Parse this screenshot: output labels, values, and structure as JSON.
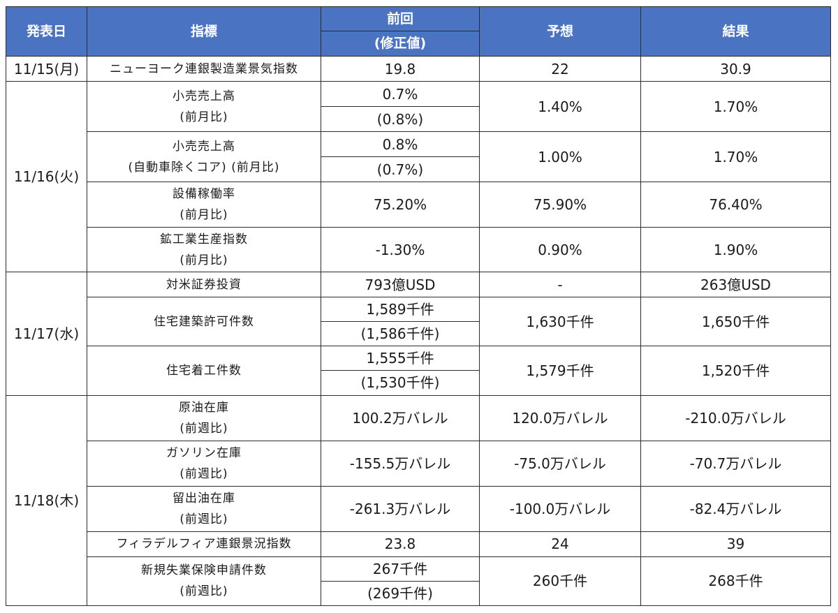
{
  "header": {
    "date": "発表日",
    "indicator": "指標",
    "prev": "前回",
    "prev_revised": "(修正値)",
    "forecast": "予想",
    "result": "結果"
  },
  "dates": [
    "11/15(月)",
    "11/16(火)",
    "11/17(水)",
    "11/18(木)"
  ],
  "rows": [
    {
      "name1": "ニューヨーク連銀製造業景気指数",
      "prev": "19.8",
      "forecast": "22",
      "result": "30.9"
    },
    {
      "name1": "小売売上高",
      "name2": "(前月比)",
      "prev": "0.7%",
      "revised": "(0.8%)",
      "forecast": "1.40%",
      "result": "1.70%"
    },
    {
      "name1": "小売売上高",
      "name2": "(自動車除くコア) (前月比)",
      "prev": "0.8%",
      "revised": "(0.7%)",
      "forecast": "1.00%",
      "result": "1.70%"
    },
    {
      "name1": "設備稼働率",
      "name2": "(前月比)",
      "prev": "75.20%",
      "forecast": "75.90%",
      "result": "76.40%"
    },
    {
      "name1": "鉱工業生産指数",
      "name2": "(前月比)",
      "prev": "-1.30%",
      "forecast": "0.90%",
      "result": "1.90%"
    },
    {
      "name1": "対米証券投資",
      "prev": "793億USD",
      "forecast": "-",
      "result": "263億USD"
    },
    {
      "name1": "住宅建築許可件数",
      "prev": "1,589千件",
      "revised": "(1,586千件)",
      "forecast": "1,630千件",
      "result": "1,650千件"
    },
    {
      "name1": "住宅着工件数",
      "prev": "1,555千件",
      "revised": "(1,530千件)",
      "forecast": "1,579千件",
      "result": "1,520千件"
    },
    {
      "name1": "原油在庫",
      "name2": "(前週比)",
      "prev": "100.2万バレル",
      "forecast": "120.0万バレル",
      "result": "-210.0万バレル"
    },
    {
      "name1": "ガソリン在庫",
      "name2": "(前週比)",
      "prev": "-155.5万バレル",
      "forecast": "-75.0万バレル",
      "result": "-70.7万バレル"
    },
    {
      "name1": "留出油在庫",
      "name2": "(前週比)",
      "prev": "-261.3万バレル",
      "forecast": "-100.0万バレル",
      "result": "-82.4万バレル"
    },
    {
      "name1": "フィラデルフィア連銀景況指数",
      "prev": "23.8",
      "forecast": "24",
      "result": "39"
    },
    {
      "name1": "新規失業保険申請件数",
      "name2": "(前週比)",
      "prev": "267千件",
      "revised": "(269千件)",
      "forecast": "260千件",
      "result": "268千件"
    }
  ]
}
